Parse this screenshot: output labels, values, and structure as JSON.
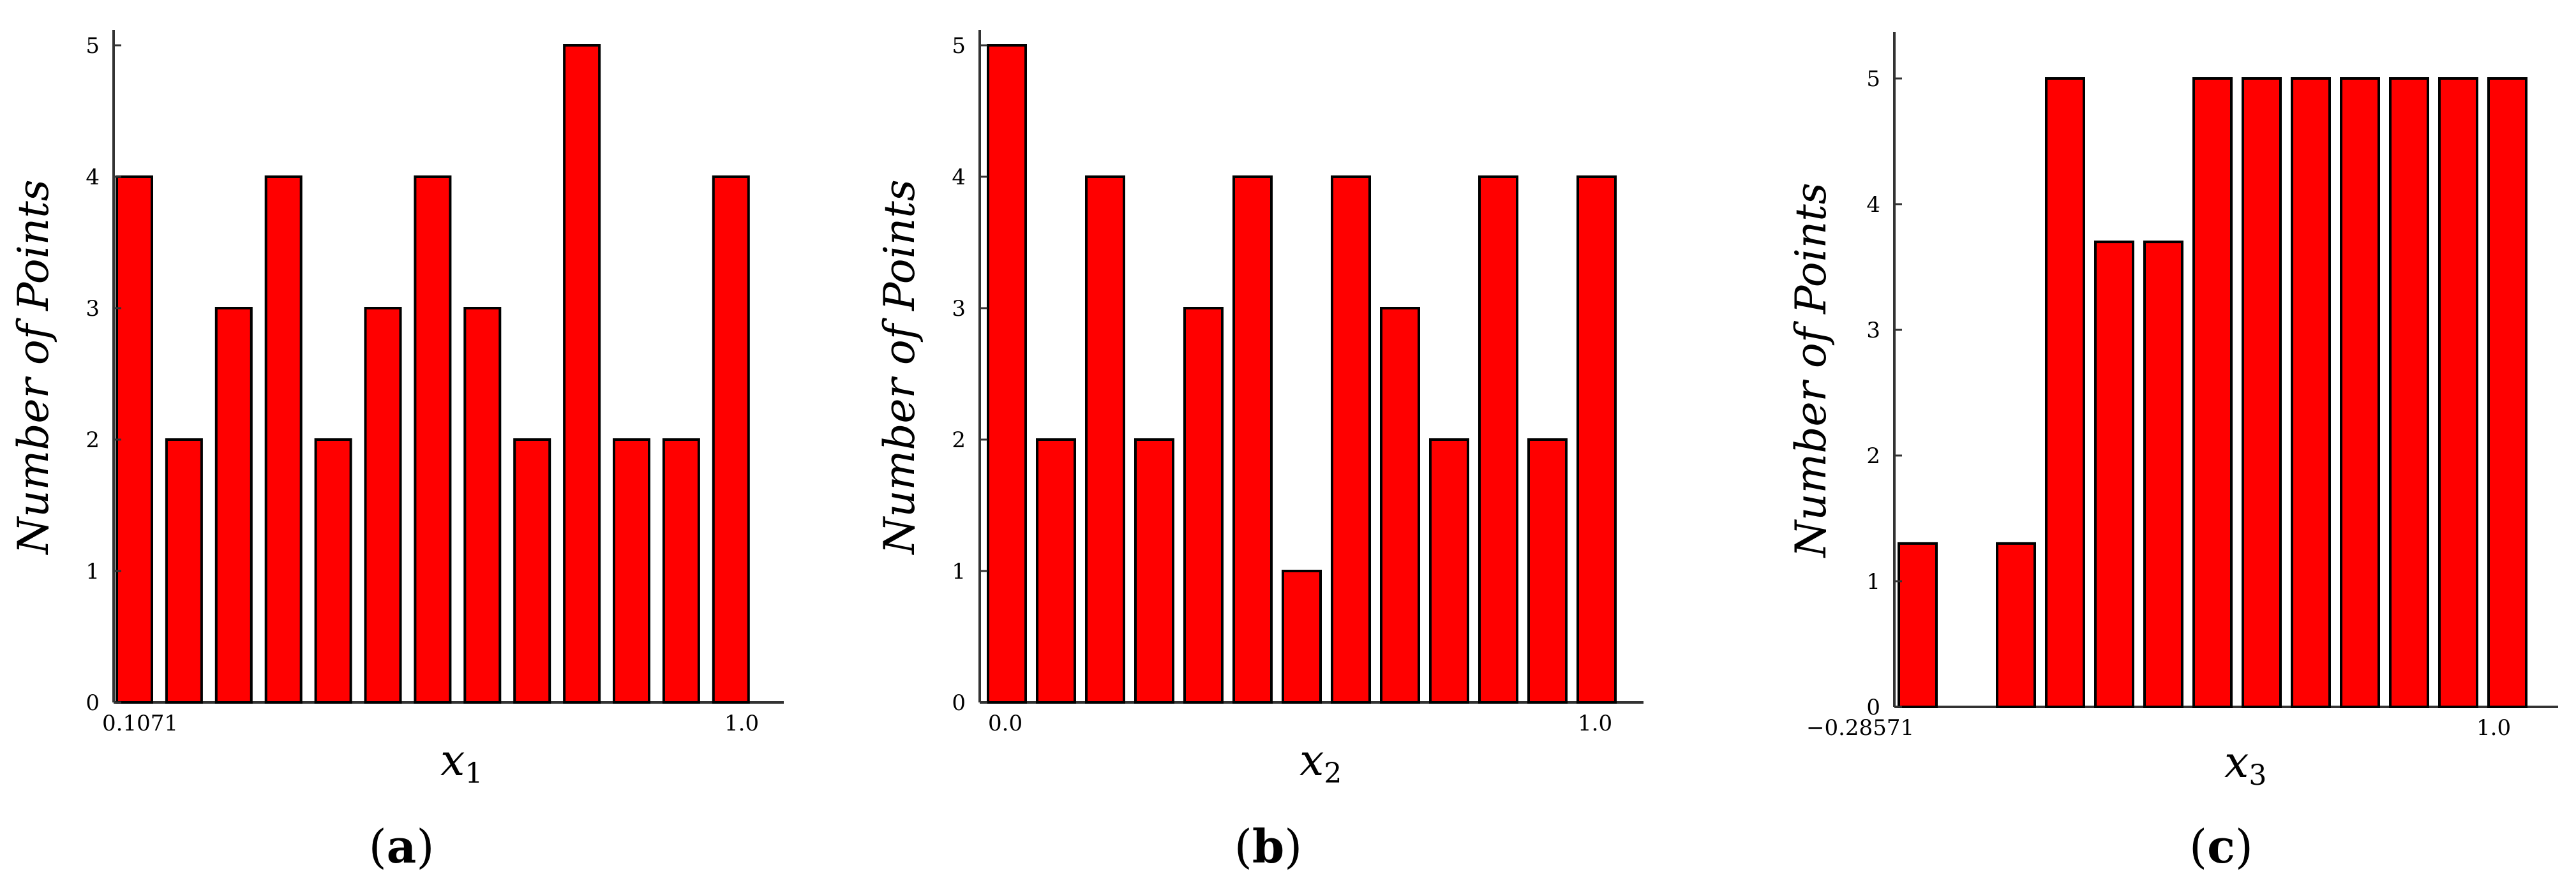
{
  "colors": {
    "bar": "#ff0000",
    "edge": "#000000",
    "axis": "#333333"
  },
  "chart_data": [
    {
      "type": "bar",
      "panel_label": "a",
      "ylabel": "Number of Points",
      "xlabel": "x",
      "xlabel_sub": "1",
      "x_tick_labels": [
        "0.1071",
        "1.0"
      ],
      "y_ticks": [
        "0",
        "1",
        "2",
        "3",
        "4",
        "5"
      ],
      "ylim": [
        0,
        5
      ],
      "values": [
        4,
        2,
        3,
        4,
        2,
        3,
        4,
        3,
        2,
        5,
        2,
        2,
        4
      ],
      "grid": false
    },
    {
      "type": "bar",
      "panel_label": "b",
      "ylabel": "Number of Points",
      "xlabel": "x",
      "xlabel_sub": "2",
      "x_tick_labels": [
        "0.0",
        "1.0"
      ],
      "y_ticks": [
        "0",
        "1",
        "2",
        "3",
        "4",
        "5"
      ],
      "ylim": [
        0,
        5
      ],
      "values": [
        5,
        2,
        4,
        2,
        3,
        4,
        1,
        4,
        3,
        2,
        4,
        2,
        4
      ],
      "grid": false
    },
    {
      "type": "bar",
      "panel_label": "c",
      "ylabel": "Number of Points",
      "xlabel": "x",
      "xlabel_sub": "3",
      "x_tick_labels": [
        "−0.28571",
        "1.0"
      ],
      "y_ticks": [
        "0",
        "1",
        "2",
        "3",
        "4",
        "5"
      ],
      "ylim": [
        0,
        5
      ],
      "values": [
        1.3,
        0,
        1.3,
        5,
        3.7,
        3.7,
        5,
        5,
        5,
        5,
        5,
        5,
        5
      ],
      "grid": false
    }
  ]
}
